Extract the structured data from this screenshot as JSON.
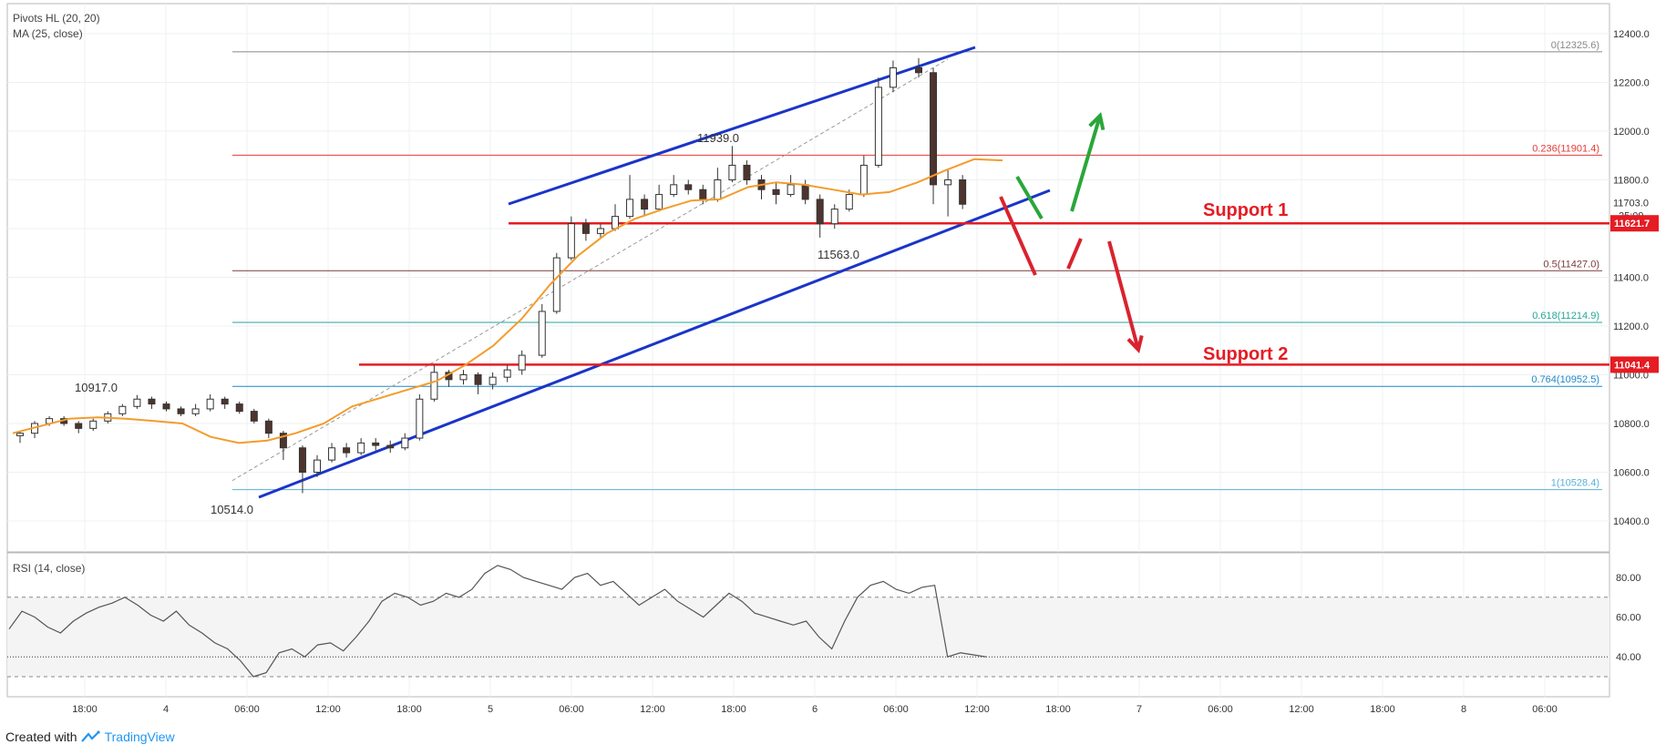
{
  "price_panel": {
    "indicator1": "Pivots HL (20, 20)",
    "indicator2": "MA (25, close)"
  },
  "rsi_panel": {
    "label": "RSI (14, close)",
    "ticks": [
      "80.00",
      "60.00",
      "40.00"
    ]
  },
  "annotations": {
    "support1": "Support 1",
    "support2": "Support 2"
  },
  "pivot_labels": [
    "10917.0",
    "10514.0",
    "11939.0",
    "11563.0"
  ],
  "fib_levels": [
    {
      "label": "0(12325.6)",
      "value": 12325.6,
      "color": "#888888"
    },
    {
      "label": "0.236(11901.4)",
      "value": 11901.4,
      "color": "#e53935"
    },
    {
      "label": "0.5(11427.0)",
      "value": 11427.0,
      "color": "#7a3b3b"
    },
    {
      "label": "0.618(11214.9)",
      "value": 11214.9,
      "color": "#26a69a"
    },
    {
      "label": "0.764(10952.5)",
      "value": 10952.5,
      "color": "#1e88c8"
    },
    {
      "label": "1(10528.4)",
      "value": 10528.4,
      "color": "#5ab0d8"
    }
  ],
  "price_axis": {
    "ticks": [
      "12400.0",
      "12200.0",
      "12000.0",
      "11800.0",
      "11400.0",
      "11200.0",
      "11000.0",
      "10800.0",
      "10600.0",
      "10400.0"
    ],
    "current_price": "11703.0",
    "countdown": "25:09",
    "support1_badge": "11621.7",
    "support2_badge": "11041.4"
  },
  "time_axis": {
    "labels": [
      "18:00",
      "4",
      "06:00",
      "12:00",
      "18:00",
      "5",
      "06:00",
      "12:00",
      "18:00",
      "6",
      "06:00",
      "12:00",
      "18:00",
      "7",
      "06:00",
      "12:00",
      "18:00",
      "8",
      "06:00"
    ]
  },
  "footer": {
    "created_with": "Created with",
    "brand": "TradingView"
  },
  "colors": {
    "up_candle": "#ffffff",
    "down_candle": "#4e342e",
    "ma_line": "#f39c2b",
    "channel": "#1a35c8",
    "support": "#e51c23",
    "arrow_green": "#2aa63a",
    "arrow_red": "#d9232e"
  },
  "chart_data": {
    "type": "candlestick",
    "series": [
      {
        "name": "MA (25, close)",
        "values": [
          10760,
          10790,
          10820,
          10825,
          10820,
          10810,
          10800,
          10745,
          10720,
          10730,
          10760,
          10800,
          10870,
          10905,
          10940,
          10975,
          11040,
          11120,
          11230,
          11370,
          11490,
          11580,
          11640,
          11680,
          11715,
          11720,
          11770,
          11790,
          11780,
          11760,
          11740,
          11750,
          11790,
          11840,
          11885,
          11880
        ]
      }
    ],
    "candles": [
      [
        10750,
        10760,
        10720,
        10770
      ],
      [
        10760,
        10800,
        10740,
        10810
      ],
      [
        10800,
        10820,
        10790,
        10830
      ],
      [
        10820,
        10800,
        10790,
        10830
      ],
      [
        10800,
        10780,
        10760,
        10810
      ],
      [
        10780,
        10810,
        10770,
        10820
      ],
      [
        10810,
        10840,
        10800,
        10850
      ],
      [
        10840,
        10870,
        10830,
        10880
      ],
      [
        10870,
        10900,
        10860,
        10917
      ],
      [
        10900,
        10880,
        10860,
        10910
      ],
      [
        10880,
        10860,
        10850,
        10890
      ],
      [
        10860,
        10840,
        10830,
        10870
      ],
      [
        10840,
        10860,
        10830,
        10880
      ],
      [
        10860,
        10900,
        10850,
        10920
      ],
      [
        10900,
        10880,
        10860,
        10910
      ],
      [
        10880,
        10850,
        10840,
        10890
      ],
      [
        10850,
        10810,
        10800,
        10860
      ],
      [
        10810,
        10760,
        10740,
        10820
      ],
      [
        10760,
        10700,
        10650,
        10770
      ],
      [
        10700,
        10600,
        10514,
        10710
      ],
      [
        10600,
        10650,
        10580,
        10670
      ],
      [
        10650,
        10700,
        10640,
        10720
      ],
      [
        10700,
        10680,
        10660,
        10720
      ],
      [
        10680,
        10720,
        10670,
        10740
      ],
      [
        10720,
        10710,
        10690,
        10740
      ],
      [
        10710,
        10700,
        10680,
        10730
      ],
      [
        10700,
        10740,
        10690,
        10760
      ],
      [
        10740,
        10900,
        10730,
        10920
      ],
      [
        10900,
        11010,
        10890,
        11040
      ],
      [
        11010,
        10980,
        10950,
        11020
      ],
      [
        10980,
        11000,
        10960,
        11020
      ],
      [
        11000,
        10960,
        10920,
        11010
      ],
      [
        10960,
        10990,
        10940,
        11010
      ],
      [
        10990,
        11020,
        10970,
        11040
      ],
      [
        11020,
        11080,
        11000,
        11100
      ],
      [
        11080,
        11260,
        11070,
        11290
      ],
      [
        11260,
        11480,
        11250,
        11500
      ],
      [
        11480,
        11620,
        11470,
        11650
      ],
      [
        11620,
        11580,
        11550,
        11640
      ],
      [
        11580,
        11600,
        11560,
        11620
      ],
      [
        11600,
        11650,
        11590,
        11700
      ],
      [
        11650,
        11720,
        11640,
        11820
      ],
      [
        11720,
        11680,
        11650,
        11740
      ],
      [
        11680,
        11740,
        11670,
        11780
      ],
      [
        11740,
        11780,
        11730,
        11820
      ],
      [
        11780,
        11760,
        11740,
        11800
      ],
      [
        11760,
        11720,
        11700,
        11780
      ],
      [
        11720,
        11800,
        11710,
        11850
      ],
      [
        11800,
        11860,
        11790,
        11939
      ],
      [
        11860,
        11800,
        11780,
        11880
      ],
      [
        11800,
        11760,
        11720,
        11820
      ],
      [
        11760,
        11740,
        11700,
        11790
      ],
      [
        11740,
        11780,
        11730,
        11820
      ],
      [
        11780,
        11720,
        11700,
        11800
      ],
      [
        11720,
        11620,
        11563,
        11740
      ],
      [
        11620,
        11680,
        11600,
        11700
      ],
      [
        11680,
        11740,
        11670,
        11760
      ],
      [
        11740,
        11860,
        11730,
        11900
      ],
      [
        11860,
        12180,
        11850,
        12220
      ],
      [
        12180,
        12260,
        12160,
        12290
      ],
      [
        12260,
        12240,
        12220,
        12300
      ],
      [
        12240,
        11780,
        11700,
        12260
      ],
      [
        11780,
        11800,
        11650,
        11840
      ],
      [
        11800,
        11700,
        11680,
        11820
      ]
    ]
  }
}
